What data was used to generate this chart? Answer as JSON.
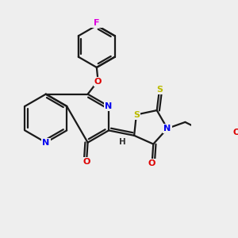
{
  "background_color": "#eeeeee",
  "bond_color": "#1a1a1a",
  "atom_colors": {
    "N": "#0000ee",
    "O": "#dd0000",
    "S": "#bbbb00",
    "F": "#dd00dd",
    "H": "#333333",
    "C": "#1a1a1a"
  },
  "figsize": [
    3.0,
    3.0
  ],
  "dpi": 100
}
